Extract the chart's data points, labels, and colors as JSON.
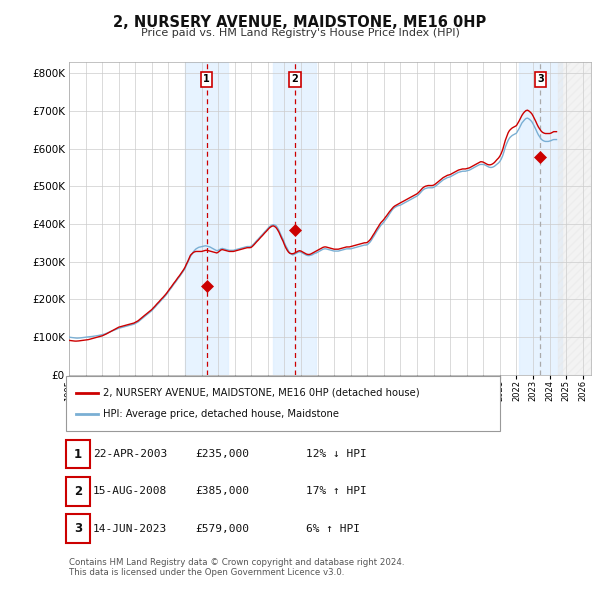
{
  "title": "2, NURSERY AVENUE, MAIDSTONE, ME16 0HP",
  "subtitle": "Price paid vs. HM Land Registry's House Price Index (HPI)",
  "sale_label": "2, NURSERY AVENUE, MAIDSTONE, ME16 0HP (detached house)",
  "hpi_label": "HPI: Average price, detached house, Maidstone",
  "sale_color": "#cc0000",
  "hpi_color": "#7aafd4",
  "shading_color": "#ddeeff",
  "footnote": "Contains HM Land Registry data © Crown copyright and database right 2024.\nThis data is licensed under the Open Government Licence v3.0.",
  "transactions": [
    {
      "num": 1,
      "date": "22-APR-2003",
      "price": 235000,
      "hpi_pct": "12% ↓ HPI",
      "year": 2003.3
    },
    {
      "num": 2,
      "date": "15-AUG-2008",
      "price": 385000,
      "hpi_pct": "17% ↑ HPI",
      "year": 2008.62
    },
    {
      "num": 3,
      "date": "14-JUN-2023",
      "price": 579000,
      "hpi_pct": "6% ↑ HPI",
      "year": 2023.45
    }
  ],
  "ylim": [
    0,
    830000
  ],
  "xlim_start": 1995.0,
  "xlim_end": 2026.5,
  "future_start": 2024.5,
  "ytick_interval": 100000,
  "background_color": "#ffffff",
  "plot_bg_color": "#ffffff",
  "grid_color": "#cccccc",
  "hpi_data_years": [
    1995.0,
    1995.08,
    1995.17,
    1995.25,
    1995.33,
    1995.42,
    1995.5,
    1995.58,
    1995.67,
    1995.75,
    1995.83,
    1995.92,
    1996.0,
    1996.08,
    1996.17,
    1996.25,
    1996.33,
    1996.42,
    1996.5,
    1996.58,
    1996.67,
    1996.75,
    1996.83,
    1996.92,
    1997.0,
    1997.08,
    1997.17,
    1997.25,
    1997.33,
    1997.42,
    1997.5,
    1997.58,
    1997.67,
    1997.75,
    1997.83,
    1997.92,
    1998.0,
    1998.08,
    1998.17,
    1998.25,
    1998.33,
    1998.42,
    1998.5,
    1998.58,
    1998.67,
    1998.75,
    1998.83,
    1998.92,
    1999.0,
    1999.08,
    1999.17,
    1999.25,
    1999.33,
    1999.42,
    1999.5,
    1999.58,
    1999.67,
    1999.75,
    1999.83,
    1999.92,
    2000.0,
    2000.08,
    2000.17,
    2000.25,
    2000.33,
    2000.42,
    2000.5,
    2000.58,
    2000.67,
    2000.75,
    2000.83,
    2000.92,
    2001.0,
    2001.08,
    2001.17,
    2001.25,
    2001.33,
    2001.42,
    2001.5,
    2001.58,
    2001.67,
    2001.75,
    2001.83,
    2001.92,
    2002.0,
    2002.08,
    2002.17,
    2002.25,
    2002.33,
    2002.42,
    2002.5,
    2002.58,
    2002.67,
    2002.75,
    2002.83,
    2002.92,
    2003.0,
    2003.08,
    2003.17,
    2003.25,
    2003.33,
    2003.42,
    2003.5,
    2003.58,
    2003.67,
    2003.75,
    2003.83,
    2003.92,
    2004.0,
    2004.08,
    2004.17,
    2004.25,
    2004.33,
    2004.42,
    2004.5,
    2004.58,
    2004.67,
    2004.75,
    2004.83,
    2004.92,
    2005.0,
    2005.08,
    2005.17,
    2005.25,
    2005.33,
    2005.42,
    2005.5,
    2005.58,
    2005.67,
    2005.75,
    2005.83,
    2005.92,
    2006.0,
    2006.08,
    2006.17,
    2006.25,
    2006.33,
    2006.42,
    2006.5,
    2006.58,
    2006.67,
    2006.75,
    2006.83,
    2006.92,
    2007.0,
    2007.08,
    2007.17,
    2007.25,
    2007.33,
    2007.42,
    2007.5,
    2007.58,
    2007.67,
    2007.75,
    2007.83,
    2007.92,
    2008.0,
    2008.08,
    2008.17,
    2008.25,
    2008.33,
    2008.42,
    2008.5,
    2008.58,
    2008.67,
    2008.75,
    2008.83,
    2008.92,
    2009.0,
    2009.08,
    2009.17,
    2009.25,
    2009.33,
    2009.42,
    2009.5,
    2009.58,
    2009.67,
    2009.75,
    2009.83,
    2009.92,
    2010.0,
    2010.08,
    2010.17,
    2010.25,
    2010.33,
    2010.42,
    2010.5,
    2010.58,
    2010.67,
    2010.75,
    2010.83,
    2010.92,
    2011.0,
    2011.08,
    2011.17,
    2011.25,
    2011.33,
    2011.42,
    2011.5,
    2011.58,
    2011.67,
    2011.75,
    2011.83,
    2011.92,
    2012.0,
    2012.08,
    2012.17,
    2012.25,
    2012.33,
    2012.42,
    2012.5,
    2012.58,
    2012.67,
    2012.75,
    2012.83,
    2012.92,
    2013.0,
    2013.08,
    2013.17,
    2013.25,
    2013.33,
    2013.42,
    2013.5,
    2013.58,
    2013.67,
    2013.75,
    2013.83,
    2013.92,
    2014.0,
    2014.08,
    2014.17,
    2014.25,
    2014.33,
    2014.42,
    2014.5,
    2014.58,
    2014.67,
    2014.75,
    2014.83,
    2014.92,
    2015.0,
    2015.08,
    2015.17,
    2015.25,
    2015.33,
    2015.42,
    2015.5,
    2015.58,
    2015.67,
    2015.75,
    2015.83,
    2015.92,
    2016.0,
    2016.08,
    2016.17,
    2016.25,
    2016.33,
    2016.42,
    2016.5,
    2016.58,
    2016.67,
    2016.75,
    2016.83,
    2016.92,
    2017.0,
    2017.08,
    2017.17,
    2017.25,
    2017.33,
    2017.42,
    2017.5,
    2017.58,
    2017.67,
    2017.75,
    2017.83,
    2017.92,
    2018.0,
    2018.08,
    2018.17,
    2018.25,
    2018.33,
    2018.42,
    2018.5,
    2018.58,
    2018.67,
    2018.75,
    2018.83,
    2018.92,
    2019.0,
    2019.08,
    2019.17,
    2019.25,
    2019.33,
    2019.42,
    2019.5,
    2019.58,
    2019.67,
    2019.75,
    2019.83,
    2019.92,
    2020.0,
    2020.08,
    2020.17,
    2020.25,
    2020.33,
    2020.42,
    2020.5,
    2020.58,
    2020.67,
    2020.75,
    2020.83,
    2020.92,
    2021.0,
    2021.08,
    2021.17,
    2021.25,
    2021.33,
    2021.42,
    2021.5,
    2021.58,
    2021.67,
    2021.75,
    2021.83,
    2021.92,
    2022.0,
    2022.08,
    2022.17,
    2022.25,
    2022.33,
    2022.42,
    2022.5,
    2022.58,
    2022.67,
    2022.75,
    2022.83,
    2022.92,
    2023.0,
    2023.08,
    2023.17,
    2023.25,
    2023.33,
    2023.42,
    2023.5,
    2023.58,
    2023.67,
    2023.75,
    2023.83,
    2023.92,
    2024.0,
    2024.08,
    2024.17,
    2024.25,
    2024.33,
    2024.42
  ],
  "hpi_data_values": [
    100000,
    99000,
    98500,
    98000,
    97500,
    97200,
    97000,
    97200,
    97500,
    98000,
    98500,
    99000,
    99500,
    99800,
    100200,
    100500,
    101000,
    101500,
    102000,
    102500,
    103000,
    103800,
    104500,
    105000,
    106000,
    107000,
    108000,
    109500,
    111000,
    112500,
    114000,
    115500,
    117000,
    118500,
    120000,
    121500,
    123000,
    124000,
    125000,
    126000,
    127000,
    128000,
    129000,
    130000,
    131000,
    132000,
    133000,
    134000,
    136000,
    138000,
    140000,
    143000,
    146000,
    149000,
    152000,
    155000,
    158000,
    161000,
    164000,
    167000,
    170000,
    174000,
    178000,
    182000,
    186000,
    190000,
    194000,
    198000,
    202000,
    206000,
    210000,
    215000,
    220000,
    225000,
    230000,
    235000,
    240000,
    245000,
    250000,
    255000,
    260000,
    265000,
    270000,
    276000,
    282000,
    290000,
    298000,
    306000,
    314000,
    320000,
    326000,
    330000,
    334000,
    336000,
    338000,
    339000,
    340000,
    341000,
    341500,
    342000,
    341000,
    340000,
    339000,
    337000,
    335000,
    333000,
    331000,
    329000,
    330000,
    332000,
    334000,
    335000,
    334000,
    333000,
    332000,
    331000,
    330000,
    330000,
    330000,
    330000,
    331000,
    332000,
    333000,
    334000,
    335000,
    336000,
    337000,
    338000,
    339000,
    340000,
    340000,
    340000,
    341000,
    344000,
    348000,
    352000,
    356000,
    360000,
    364000,
    368000,
    372000,
    376000,
    380000,
    384000,
    388000,
    392000,
    395000,
    397000,
    398000,
    397000,
    395000,
    390000,
    383000,
    375000,
    367000,
    359000,
    350000,
    342000,
    335000,
    328000,
    323000,
    320000,
    318000,
    319000,
    321000,
    323000,
    325000,
    326000,
    325000,
    323000,
    321000,
    319000,
    317000,
    316000,
    316000,
    317000,
    318000,
    320000,
    322000,
    323000,
    325000,
    327000,
    329000,
    331000,
    333000,
    334000,
    334000,
    333000,
    332000,
    331000,
    330000,
    329000,
    328000,
    328000,
    328000,
    328000,
    329000,
    330000,
    331000,
    332000,
    333000,
    334000,
    334000,
    334000,
    334000,
    335000,
    336000,
    337000,
    338000,
    339000,
    340000,
    341000,
    342000,
    343000,
    344000,
    344000,
    345000,
    348000,
    352000,
    357000,
    363000,
    369000,
    375000,
    381000,
    387000,
    392000,
    397000,
    401000,
    405000,
    410000,
    415000,
    420000,
    426000,
    432000,
    437000,
    441000,
    444000,
    446000,
    448000,
    449000,
    450000,
    452000,
    454000,
    456000,
    458000,
    460000,
    462000,
    464000,
    466000,
    468000,
    470000,
    472000,
    474000,
    477000,
    481000,
    485000,
    489000,
    492000,
    494000,
    495000,
    496000,
    496000,
    496000,
    496000,
    497000,
    499000,
    502000,
    505000,
    508000,
    511000,
    514000,
    517000,
    519000,
    521000,
    523000,
    524000,
    525000,
    527000,
    529000,
    531000,
    533000,
    535000,
    537000,
    538000,
    539000,
    540000,
    540000,
    540000,
    541000,
    542000,
    543000,
    545000,
    547000,
    549000,
    551000,
    553000,
    555000,
    557000,
    558000,
    558000,
    558000,
    557000,
    555000,
    553000,
    551000,
    550000,
    550000,
    551000,
    553000,
    556000,
    559000,
    562000,
    566000,
    572000,
    581000,
    592000,
    604000,
    614000,
    622000,
    628000,
    632000,
    635000,
    637000,
    639000,
    641000,
    647000,
    654000,
    661000,
    668000,
    673000,
    677000,
    680000,
    681000,
    679000,
    676000,
    672000,
    666000,
    659000,
    651000,
    643000,
    636000,
    630000,
    625000,
    622000,
    620000,
    619000,
    619000,
    619000,
    620000,
    621000,
    623000,
    624000,
    624000,
    624000
  ],
  "sale_data_years": [
    1995.0,
    1995.08,
    1995.17,
    1995.25,
    1995.33,
    1995.42,
    1995.5,
    1995.58,
    1995.67,
    1995.75,
    1995.83,
    1995.92,
    1996.0,
    1996.08,
    1996.17,
    1996.25,
    1996.33,
    1996.42,
    1996.5,
    1996.58,
    1996.67,
    1996.75,
    1996.83,
    1996.92,
    1997.0,
    1997.08,
    1997.17,
    1997.25,
    1997.33,
    1997.42,
    1997.5,
    1997.58,
    1997.67,
    1997.75,
    1997.83,
    1997.92,
    1998.0,
    1998.08,
    1998.17,
    1998.25,
    1998.33,
    1998.42,
    1998.5,
    1998.58,
    1998.67,
    1998.75,
    1998.83,
    1998.92,
    1999.0,
    1999.08,
    1999.17,
    1999.25,
    1999.33,
    1999.42,
    1999.5,
    1999.58,
    1999.67,
    1999.75,
    1999.83,
    1999.92,
    2000.0,
    2000.08,
    2000.17,
    2000.25,
    2000.33,
    2000.42,
    2000.5,
    2000.58,
    2000.67,
    2000.75,
    2000.83,
    2000.92,
    2001.0,
    2001.08,
    2001.17,
    2001.25,
    2001.33,
    2001.42,
    2001.5,
    2001.58,
    2001.67,
    2001.75,
    2001.83,
    2001.92,
    2002.0,
    2002.08,
    2002.17,
    2002.25,
    2002.33,
    2002.42,
    2002.5,
    2002.58,
    2002.67,
    2002.75,
    2002.83,
    2002.92,
    2003.0,
    2003.08,
    2003.17,
    2003.25,
    2003.33,
    2003.42,
    2003.5,
    2003.58,
    2003.67,
    2003.75,
    2003.83,
    2003.92,
    2004.0,
    2004.08,
    2004.17,
    2004.25,
    2004.33,
    2004.42,
    2004.5,
    2004.58,
    2004.67,
    2004.75,
    2004.83,
    2004.92,
    2005.0,
    2005.08,
    2005.17,
    2005.25,
    2005.33,
    2005.42,
    2005.5,
    2005.58,
    2005.67,
    2005.75,
    2005.83,
    2005.92,
    2006.0,
    2006.08,
    2006.17,
    2006.25,
    2006.33,
    2006.42,
    2006.5,
    2006.58,
    2006.67,
    2006.75,
    2006.83,
    2006.92,
    2007.0,
    2007.08,
    2007.17,
    2007.25,
    2007.33,
    2007.42,
    2007.5,
    2007.58,
    2007.67,
    2007.75,
    2007.83,
    2007.92,
    2008.0,
    2008.08,
    2008.17,
    2008.25,
    2008.33,
    2008.42,
    2008.5,
    2008.58,
    2008.67,
    2008.75,
    2008.83,
    2008.92,
    2009.0,
    2009.08,
    2009.17,
    2009.25,
    2009.33,
    2009.42,
    2009.5,
    2009.58,
    2009.67,
    2009.75,
    2009.83,
    2009.92,
    2010.0,
    2010.08,
    2010.17,
    2010.25,
    2010.33,
    2010.42,
    2010.5,
    2010.58,
    2010.67,
    2010.75,
    2010.83,
    2010.92,
    2011.0,
    2011.08,
    2011.17,
    2011.25,
    2011.33,
    2011.42,
    2011.5,
    2011.58,
    2011.67,
    2011.75,
    2011.83,
    2011.92,
    2012.0,
    2012.08,
    2012.17,
    2012.25,
    2012.33,
    2012.42,
    2012.5,
    2012.58,
    2012.67,
    2012.75,
    2012.83,
    2012.92,
    2013.0,
    2013.08,
    2013.17,
    2013.25,
    2013.33,
    2013.42,
    2013.5,
    2013.58,
    2013.67,
    2013.75,
    2013.83,
    2013.92,
    2014.0,
    2014.08,
    2014.17,
    2014.25,
    2014.33,
    2014.42,
    2014.5,
    2014.58,
    2014.67,
    2014.75,
    2014.83,
    2014.92,
    2015.0,
    2015.08,
    2015.17,
    2015.25,
    2015.33,
    2015.42,
    2015.5,
    2015.58,
    2015.67,
    2015.75,
    2015.83,
    2015.92,
    2016.0,
    2016.08,
    2016.17,
    2016.25,
    2016.33,
    2016.42,
    2016.5,
    2016.58,
    2016.67,
    2016.75,
    2016.83,
    2016.92,
    2017.0,
    2017.08,
    2017.17,
    2017.25,
    2017.33,
    2017.42,
    2017.5,
    2017.58,
    2017.67,
    2017.75,
    2017.83,
    2017.92,
    2018.0,
    2018.08,
    2018.17,
    2018.25,
    2018.33,
    2018.42,
    2018.5,
    2018.58,
    2018.67,
    2018.75,
    2018.83,
    2018.92,
    2019.0,
    2019.08,
    2019.17,
    2019.25,
    2019.33,
    2019.42,
    2019.5,
    2019.58,
    2019.67,
    2019.75,
    2019.83,
    2019.92,
    2020.0,
    2020.08,
    2020.17,
    2020.25,
    2020.33,
    2020.42,
    2020.5,
    2020.58,
    2020.67,
    2020.75,
    2020.83,
    2020.92,
    2021.0,
    2021.08,
    2021.17,
    2021.25,
    2021.33,
    2021.42,
    2021.5,
    2021.58,
    2021.67,
    2021.75,
    2021.83,
    2021.92,
    2022.0,
    2022.08,
    2022.17,
    2022.25,
    2022.33,
    2022.42,
    2022.5,
    2022.58,
    2022.67,
    2022.75,
    2022.83,
    2022.92,
    2023.0,
    2023.08,
    2023.17,
    2023.25,
    2023.33,
    2023.42,
    2023.5,
    2023.58,
    2023.67,
    2023.75,
    2023.83,
    2023.92,
    2024.0,
    2024.08,
    2024.17,
    2024.25,
    2024.33,
    2024.42
  ],
  "sale_data_values": [
    91000,
    90500,
    90000,
    89500,
    89200,
    89000,
    89200,
    89500,
    90000,
    90500,
    91000,
    91500,
    92000,
    92500,
    93000,
    94000,
    95000,
    96000,
    97000,
    98000,
    99000,
    100000,
    101000,
    102000,
    103000,
    104500,
    106000,
    108000,
    110000,
    112000,
    114000,
    116000,
    118000,
    120000,
    122000,
    124000,
    126000,
    127000,
    128000,
    129000,
    130000,
    131000,
    132000,
    133000,
    134000,
    135000,
    136000,
    137000,
    139000,
    141000,
    143000,
    146000,
    149000,
    152000,
    155000,
    158000,
    161000,
    164000,
    167000,
    170000,
    173000,
    177000,
    181000,
    185000,
    189000,
    193000,
    197000,
    201000,
    205000,
    209000,
    213000,
    218000,
    223000,
    228000,
    233000,
    238000,
    243000,
    248000,
    253000,
    258000,
    263000,
    268000,
    273000,
    279000,
    285000,
    293000,
    301000,
    309000,
    317000,
    321000,
    324000,
    326000,
    327000,
    327000,
    327000,
    327000,
    327000,
    328000,
    329000,
    330000,
    330000,
    329000,
    328000,
    327000,
    326000,
    325000,
    324000,
    323000,
    325000,
    328000,
    331000,
    332000,
    331000,
    330000,
    329000,
    328000,
    327000,
    327000,
    327000,
    327000,
    328000,
    329000,
    330000,
    331000,
    332000,
    333000,
    334000,
    335000,
    336000,
    337000,
    337000,
    337000,
    338000,
    341000,
    345000,
    349000,
    353000,
    357000,
    361000,
    365000,
    369000,
    373000,
    377000,
    381000,
    385000,
    389000,
    392000,
    394000,
    395000,
    393000,
    390000,
    385000,
    378000,
    370000,
    362000,
    354000,
    345000,
    337000,
    330000,
    325000,
    322000,
    321000,
    321000,
    322000,
    324000,
    326000,
    328000,
    329000,
    328000,
    326000,
    324000,
    322000,
    320000,
    319000,
    319000,
    320000,
    322000,
    324000,
    326000,
    328000,
    330000,
    332000,
    334000,
    336000,
    338000,
    339000,
    339000,
    338000,
    337000,
    336000,
    335000,
    334000,
    333000,
    333000,
    333000,
    333000,
    334000,
    335000,
    336000,
    337000,
    338000,
    339000,
    339000,
    339000,
    340000,
    341000,
    342000,
    343000,
    344000,
    345000,
    346000,
    347000,
    348000,
    349000,
    350000,
    350000,
    351000,
    354000,
    358000,
    363000,
    369000,
    375000,
    381000,
    387000,
    393000,
    399000,
    404000,
    408000,
    412000,
    417000,
    422000,
    427000,
    432000,
    437000,
    441000,
    445000,
    448000,
    450000,
    452000,
    454000,
    456000,
    458000,
    460000,
    462000,
    464000,
    466000,
    468000,
    470000,
    472000,
    474000,
    476000,
    478000,
    480000,
    483000,
    487000,
    491000,
    495000,
    498000,
    500000,
    501000,
    502000,
    502000,
    502000,
    502000,
    503000,
    505000,
    508000,
    511000,
    514000,
    517000,
    520000,
    523000,
    525000,
    527000,
    529000,
    530000,
    531000,
    533000,
    535000,
    537000,
    539000,
    541000,
    543000,
    544000,
    545000,
    546000,
    546000,
    546000,
    547000,
    548000,
    549000,
    551000,
    553000,
    555000,
    557000,
    559000,
    561000,
    563000,
    565000,
    565000,
    564000,
    562000,
    560000,
    558000,
    557000,
    557000,
    558000,
    560000,
    563000,
    567000,
    571000,
    575000,
    580000,
    587000,
    597000,
    609000,
    622000,
    633000,
    642000,
    648000,
    652000,
    655000,
    657000,
    659000,
    661000,
    667000,
    674000,
    681000,
    688000,
    694000,
    698000,
    701000,
    702000,
    700000,
    697000,
    693000,
    687000,
    680000,
    672000,
    664000,
    657000,
    651000,
    646000,
    643000,
    641000,
    640000,
    640000,
    640000,
    640000,
    641000,
    643000,
    645000,
    645000,
    645000
  ]
}
